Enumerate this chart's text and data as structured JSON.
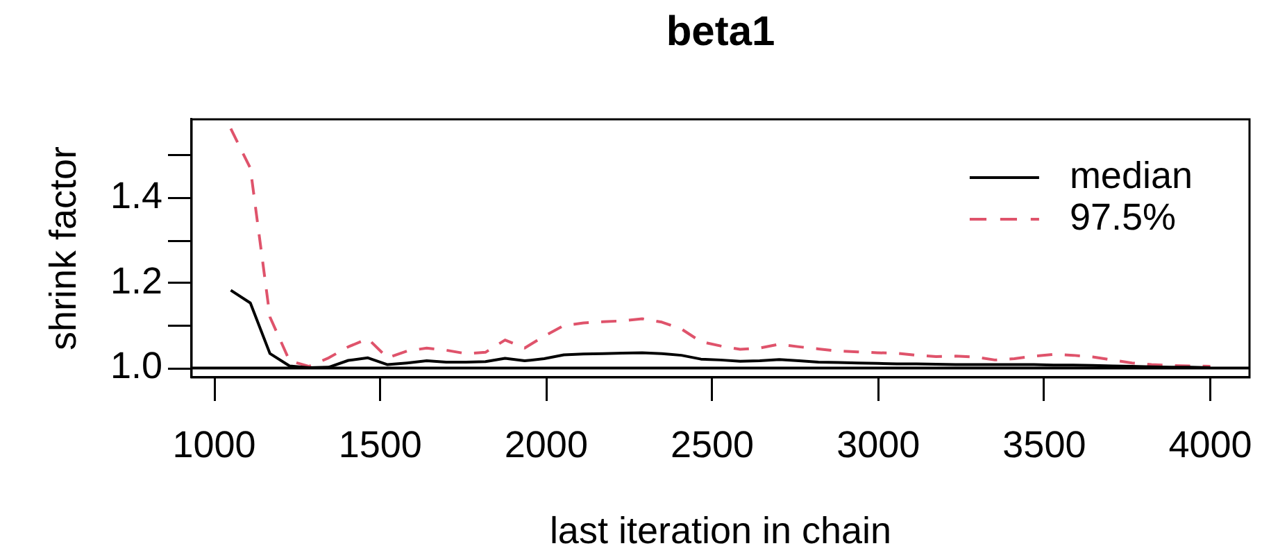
{
  "chart_data": {
    "type": "line",
    "title": "beta1",
    "xlabel": "last iteration in chain",
    "ylabel": "shrink factor",
    "x": [
      1050,
      1109,
      1168,
      1227,
      1286,
      1345,
      1404,
      1463,
      1522,
      1581,
      1640,
      1699,
      1758,
      1817,
      1876,
      1935,
      1994,
      2053,
      2112,
      2171,
      2230,
      2289,
      2348,
      2407,
      2466,
      2525,
      2584,
      2643,
      2702,
      2761,
      2820,
      2879,
      2938,
      2997,
      3056,
      3115,
      3174,
      3233,
      3292,
      3351,
      3410,
      3469,
      3528,
      3587,
      3646,
      3705,
      3764,
      3823,
      3882,
      3941,
      4000
    ],
    "series": [
      {
        "name": "median",
        "color": "#000000",
        "line_style": "solid",
        "values": [
          1.183,
          1.153,
          1.034,
          1.005,
          1.001,
          1.002,
          1.018,
          1.024,
          1.008,
          1.012,
          1.017,
          1.014,
          1.014,
          1.015,
          1.023,
          1.017,
          1.022,
          1.031,
          1.033,
          1.034,
          1.035,
          1.036,
          1.034,
          1.03,
          1.021,
          1.019,
          1.016,
          1.017,
          1.02,
          1.017,
          1.014,
          1.013,
          1.012,
          1.011,
          1.01,
          1.01,
          1.009,
          1.008,
          1.008,
          1.008,
          1.008,
          1.008,
          1.007,
          1.007,
          1.006,
          1.005,
          1.004,
          1.003,
          1.002,
          1.002,
          1.001
        ]
      },
      {
        "name": "97.5%",
        "color": "#df536b",
        "line_style": "dashed",
        "values": [
          1.563,
          1.47,
          1.12,
          1.017,
          1.004,
          1.024,
          1.05,
          1.069,
          1.024,
          1.04,
          1.047,
          1.042,
          1.034,
          1.037,
          1.066,
          1.047,
          1.075,
          1.1,
          1.106,
          1.109,
          1.111,
          1.116,
          1.108,
          1.092,
          1.062,
          1.052,
          1.044,
          1.047,
          1.056,
          1.05,
          1.045,
          1.04,
          1.038,
          1.036,
          1.035,
          1.03,
          1.027,
          1.028,
          1.026,
          1.019,
          1.022,
          1.028,
          1.032,
          1.03,
          1.026,
          1.019,
          1.012,
          1.008,
          1.006,
          1.005,
          1.004
        ]
      }
    ],
    "xlim": [
      932,
      4118
    ],
    "xticks": [
      1000,
      1500,
      2000,
      2500,
      3000,
      3500,
      4000
    ],
    "ylim": [
      0.978,
      1.585
    ],
    "yticks": [
      {
        "value": 1,
        "label": "1.0"
      },
      {
        "value": 1.1,
        "label": null
      },
      {
        "value": 1.2,
        "label": "1.2"
      },
      {
        "value": 1.3,
        "label": null
      },
      {
        "value": 1.4,
        "label": "1.4"
      },
      {
        "value": 1.5,
        "label": null
      }
    ],
    "ref_lines": [
      {
        "axis": "y",
        "value": 1,
        "color": "#000000"
      }
    ],
    "legend": "top right",
    "marker": "none",
    "grid": false
  }
}
